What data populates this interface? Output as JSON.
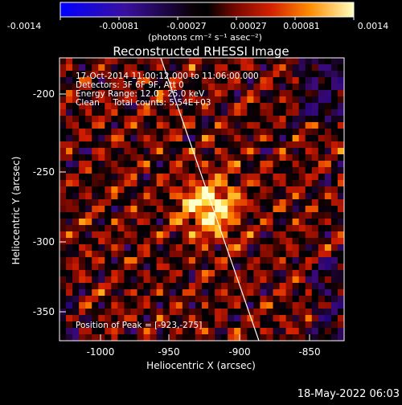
{
  "colorbar": {
    "ticks": [
      "-0.0014",
      "-0.00081",
      "-0.00027",
      "0.00027",
      "0.00081",
      "0.0014"
    ],
    "unit_label": "(photons cm⁻² s⁻¹ asec⁻²)"
  },
  "title": "Reconstructed RHESSI Image",
  "info": {
    "line1": "17-Oct-2014 11:00:12.000 to 11:06:00.000",
    "line2": "Detectors: 3F 6F 9F, Att 0",
    "line3": "Energy Range: 12.0 - 25.0 keV",
    "line4": "Clean     Total counts: 5.54E+03"
  },
  "peak": {
    "label": "Position of Peak = ",
    "value": "[-923,-275]"
  },
  "axes": {
    "xlabel": "Heliocentric X (arcsec)",
    "ylabel": "Heliocentric Y (arcsec)",
    "xticks": [
      "-1000",
      "-950",
      "-900",
      "-850"
    ],
    "yticks": [
      "-200",
      "-250",
      "-300",
      "-350"
    ]
  },
  "timestamp": "18-May-2022 06:03",
  "colors": {
    "background": "#000000",
    "colormap": [
      "#0000ff",
      "#4b0a8c",
      "#000000",
      "#c81400",
      "#ff8c00",
      "#ffffb4"
    ]
  }
}
